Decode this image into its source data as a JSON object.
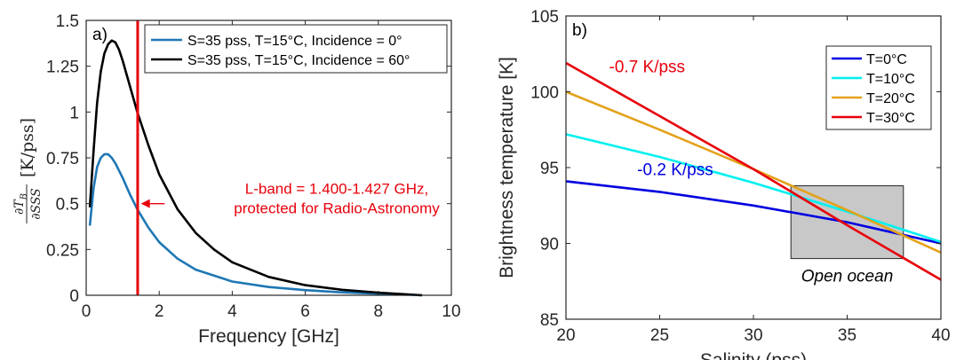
{
  "chart_data": [
    {
      "type": "line",
      "panel_label": "a)",
      "xlabel": "Frequency [GHz]",
      "ylabel_math": "∂T_B / ∂SSS [K/pss]",
      "xlim": [
        0,
        10
      ],
      "ylim": [
        0,
        1.5
      ],
      "xticks": [
        0,
        2,
        4,
        6,
        8,
        10
      ],
      "xtick_labels": [
        "0",
        "2",
        "4",
        "6",
        "8",
        "10"
      ],
      "yticks": [
        0,
        0.25,
        0.5,
        0.75,
        1,
        1.25,
        1.5
      ],
      "ytick_labels": [
        "0",
        "0.25",
        "0.5",
        "0.75",
        "1",
        "1.25",
        "1.5"
      ],
      "grid": false,
      "legend_position": "top-right",
      "series": [
        {
          "name": "S=35 pss, T=15°C, Incidence = 0°",
          "color": "#1f77b4",
          "x": [
            0.1,
            0.2,
            0.3,
            0.4,
            0.5,
            0.6,
            0.7,
            0.8,
            1.0,
            1.2,
            1.4,
            1.7,
            2.0,
            2.5,
            3.0,
            4.0,
            5.0,
            6.0,
            7.0,
            8.0,
            9.2
          ],
          "y": [
            0.38,
            0.58,
            0.7,
            0.75,
            0.77,
            0.77,
            0.75,
            0.72,
            0.64,
            0.55,
            0.47,
            0.37,
            0.29,
            0.2,
            0.14,
            0.075,
            0.045,
            0.028,
            0.016,
            0.008,
            0.0
          ]
        },
        {
          "name": "S=35 pss, T=15°C, Incidence = 60°",
          "color": "#000000",
          "x": [
            0.1,
            0.2,
            0.3,
            0.4,
            0.5,
            0.6,
            0.7,
            0.8,
            0.9,
            1.0,
            1.2,
            1.4,
            1.7,
            2.0,
            2.5,
            3.0,
            3.5,
            4.0,
            5.0,
            6.0,
            7.0,
            8.0,
            9.2
          ],
          "y": [
            0.48,
            0.78,
            1.05,
            1.22,
            1.32,
            1.37,
            1.39,
            1.38,
            1.34,
            1.28,
            1.14,
            1.0,
            0.82,
            0.66,
            0.47,
            0.34,
            0.25,
            0.18,
            0.1,
            0.055,
            0.03,
            0.014,
            0.0
          ]
        }
      ],
      "vline": {
        "x": 1.41,
        "color": "#e8000b"
      },
      "annotation": {
        "lines": [
          "L-band = 1.400-1.427 GHz,",
          "protected for Radio-Astronomy"
        ],
        "color": "#e8000b",
        "arrow_from": [
          2.15,
          0.5
        ],
        "arrow_to": [
          1.5,
          0.5
        ]
      }
    },
    {
      "type": "line",
      "panel_label": "b)",
      "xlabel": "Salinity (pss)",
      "ylabel": "Brightness temperature [K]",
      "xlim": [
        20,
        40
      ],
      "ylim": [
        85,
        105
      ],
      "xticks": [
        20,
        25,
        30,
        35,
        40
      ],
      "xtick_labels": [
        "20",
        "25",
        "30",
        "35",
        "40"
      ],
      "yticks": [
        85,
        90,
        95,
        100,
        105
      ],
      "ytick_labels": [
        "85",
        "90",
        "95",
        "100",
        "105"
      ],
      "grid": false,
      "legend_position": "top-right",
      "series": [
        {
          "name": "T=0°C",
          "color": "#0000e0",
          "x": [
            20,
            25,
            30,
            35,
            40
          ],
          "y": [
            94.1,
            93.4,
            92.5,
            91.4,
            90.0
          ]
        },
        {
          "name": "T=10°C",
          "color": "#00f0f0",
          "x": [
            20,
            25,
            30,
            35,
            40
          ],
          "y": [
            97.2,
            95.7,
            94.0,
            92.1,
            90.1
          ]
        },
        {
          "name": "T=20°C",
          "color": "#e3a21a",
          "x": [
            20,
            25,
            30,
            35,
            40
          ],
          "y": [
            100.0,
            97.5,
            94.9,
            92.2,
            89.4
          ]
        },
        {
          "name": "T=30°C",
          "color": "#e8000b",
          "x": [
            20,
            25,
            30,
            35,
            40
          ],
          "y": [
            101.9,
            98.4,
            94.9,
            91.2,
            87.6
          ]
        }
      ],
      "region": {
        "label": "Open ocean",
        "x": [
          32,
          38
        ],
        "y": [
          89,
          93.8
        ],
        "fill": "#c8c8c8"
      },
      "annotations": [
        {
          "text": "-0.7 K/pss",
          "color": "#e8000b",
          "at": [
            22.3,
            101.3
          ]
        },
        {
          "text": "-0.2 K/pss",
          "color": "#0000e0",
          "at": [
            23.8,
            94.5
          ]
        }
      ]
    }
  ]
}
